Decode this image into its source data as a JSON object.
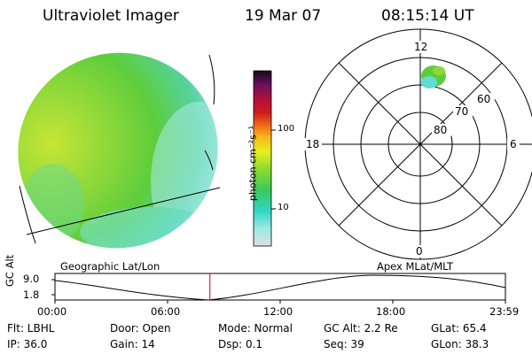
{
  "header": {
    "instrument": "Ultraviolet Imager",
    "date": "19 Mar 07",
    "time": "08:15:14 UT"
  },
  "colorbar": {
    "label": "photon cm⁻²s⁻¹",
    "ticks": [
      "100",
      "10"
    ]
  },
  "polar_plot": {
    "mlt_labels": {
      "top": "12",
      "left": "18",
      "right": "6",
      "bottom": "0"
    },
    "lat_labels": [
      "60",
      "70",
      "80"
    ]
  },
  "timeline": {
    "left_title": "Geographic Lat/Lon",
    "right_title": "Apex  MLat/MLT",
    "ylabel": "GC Alt",
    "y_ticks": [
      "9.0",
      "1.8"
    ],
    "x_ticks": [
      "00:00",
      "06:00",
      "12:00",
      "18:00",
      "23:59"
    ],
    "current_time_fraction": 0.344
  },
  "info": {
    "flt": "Flt: LBHL",
    "ip": "IP: 36.0",
    "door": "Door: Open",
    "gain": "Gain: 14",
    "mode": "Mode: Normal",
    "dsp": "Dsp:     0.1",
    "gcalt": "GC Alt: 2.2 Re",
    "seq": "Seq: 39",
    "glat": "GLat:  65.4",
    "glon": "GLon:  38.3"
  },
  "colors": {
    "accent_line": "#cc0000",
    "map_green": "#5ecd3c",
    "map_cyan": "#5fdcd5"
  }
}
